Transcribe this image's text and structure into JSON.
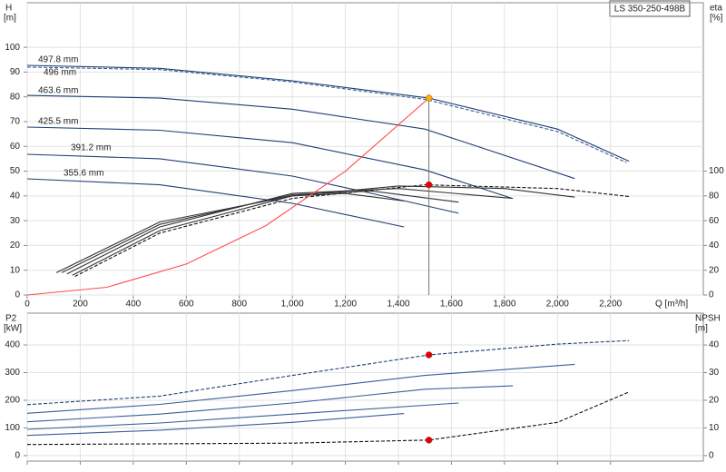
{
  "chart_data": [
    {
      "type": "line",
      "title": "LS 350-250-498B",
      "ylabel": [
        "H",
        "[m]"
      ],
      "y2label": [
        "eta",
        "[%]"
      ],
      "xlabel": "Q [m³/h]",
      "xlim": [
        0,
        2550
      ],
      "xticks": [
        0,
        200,
        400,
        600,
        800,
        {
          "value": 1000,
          "label": "1,000"
        },
        {
          "value": 1200,
          "label": "1,200"
        },
        {
          "value": 1400,
          "label": "1,400"
        },
        {
          "value": 1600,
          "label": "1,600"
        },
        {
          "value": 1800,
          "label": "1,800"
        },
        {
          "value": 2000,
          "label": "2,000"
        },
        {
          "value": 2200,
          "label": "2,200"
        }
      ],
      "show_xtick_labels": true,
      "ylim": [
        0,
        118
      ],
      "yticks": [
        0,
        10,
        20,
        30,
        40,
        50,
        60,
        70,
        80,
        90,
        100
      ],
      "y2lim": [
        0,
        236
      ],
      "y2ticks": [
        0,
        20,
        40,
        60,
        80,
        100
      ],
      "grid": true,
      "series": [
        {
          "name": "497.8 mm",
          "color": "#1f3f73",
          "dash": false,
          "x": [
            0,
            500,
            1000,
            1515,
            2000,
            2270
          ],
          "values": [
            92.7,
            91.5,
            86.5,
            79.5,
            67,
            54
          ]
        },
        {
          "name": "496 mm",
          "color": "#3a5f9a",
          "dash": true,
          "x": [
            0,
            500,
            1000,
            1500,
            2000,
            2260
          ],
          "values": [
            92,
            91,
            86,
            79,
            66,
            53.5
          ]
        },
        {
          "name": "463.6 mm",
          "color": "#1f3f73",
          "dash": false,
          "x": [
            0,
            500,
            1000,
            1500,
            2065
          ],
          "values": [
            80.6,
            79.5,
            75,
            67,
            47
          ]
        },
        {
          "name": "425.5 mm",
          "color": "#1f3f73",
          "dash": false,
          "x": [
            0,
            500,
            1000,
            1500,
            1830
          ],
          "values": [
            67.8,
            66.5,
            61.5,
            50.5,
            39
          ]
        },
        {
          "name": "391.2 mm",
          "color": "#1f3f73",
          "dash": false,
          "x": [
            0,
            500,
            1000,
            1300,
            1627
          ],
          "values": [
            56.8,
            55,
            48,
            41,
            33
          ]
        },
        {
          "name": "355.6 mm",
          "color": "#1f3f73",
          "dash": false,
          "x": [
            0,
            500,
            1000,
            1421
          ],
          "values": [
            46.9,
            44.5,
            37,
            27.5
          ]
        },
        {
          "color": "#111111",
          "dash": true,
          "axis": "y2",
          "x": [
            180,
            500,
            1000,
            1500,
            2000,
            2270
          ],
          "values": [
            15,
            50,
            78,
            89,
            86,
            79.5
          ]
        },
        {
          "color": "#333333",
          "dash": false,
          "axis": "y2",
          "x": [
            170,
            500,
            1000,
            1400,
            1800,
            2065
          ],
          "values": [
            16,
            52,
            80,
            88,
            86,
            79
          ]
        },
        {
          "color": "#333333",
          "dash": false,
          "axis": "y2",
          "x": [
            150,
            500,
            1000,
            1400,
            1832
          ],
          "values": [
            17,
            55,
            82,
            86,
            78
          ]
        },
        {
          "color": "#333333",
          "dash": false,
          "axis": "y2",
          "x": [
            130,
            500,
            1000,
            1300,
            1627
          ],
          "values": [
            18,
            57,
            81,
            84,
            75
          ]
        },
        {
          "color": "#333333",
          "dash": false,
          "axis": "y2",
          "x": [
            110,
            500,
            1000,
            1200,
            1421
          ],
          "values": [
            18,
            59,
            80,
            82,
            76
          ]
        },
        {
          "color": "#ff4d4d",
          "dash": false,
          "x": [
            0,
            300,
            600,
            900,
            1200,
            1515
          ],
          "values": [
            0,
            3.1,
            12.5,
            28,
            50,
            79.5
          ]
        }
      ],
      "markers": [
        {
          "x": 1515,
          "y": 79.5,
          "color": "#f5b400",
          "drop": true
        },
        {
          "x": 1515,
          "y": 89,
          "color": "#e00000",
          "axis": "y2",
          "drop": false
        }
      ]
    },
    {
      "type": "line",
      "ylabel": [
        "P2",
        "[kW]"
      ],
      "y2label": [
        "NPSH",
        "[m]"
      ],
      "xlim": [
        0,
        2550
      ],
      "xticks": [
        0,
        200,
        400,
        600,
        800,
        1000,
        1200,
        1400,
        1600,
        1800,
        2000,
        2200
      ],
      "show_xtick_labels": false,
      "ylim": [
        -20,
        515
      ],
      "yticks": [
        0,
        100,
        200,
        300,
        400
      ],
      "y2lim": [
        -2,
        51.5
      ],
      "y2ticks": [
        0,
        10,
        20,
        30,
        40
      ],
      "grid": true,
      "series": [
        {
          "color": "#1f3f73",
          "dash": true,
          "x": [
            0,
            500,
            1000,
            1515,
            2000,
            2270
          ],
          "values": [
            184,
            215,
            290,
            364,
            403,
            416
          ]
        },
        {
          "color": "#3a5f9a",
          "dash": false,
          "x": [
            0,
            500,
            1000,
            1500,
            2065
          ],
          "values": [
            153,
            185,
            235,
            290,
            330
          ]
        },
        {
          "color": "#3a5f9a",
          "dash": false,
          "x": [
            0,
            500,
            1000,
            1500,
            1832
          ],
          "values": [
            122,
            150,
            190,
            240,
            252
          ]
        },
        {
          "color": "#3a5f9a",
          "dash": false,
          "x": [
            0,
            500,
            1000,
            1627
          ],
          "values": [
            95,
            118,
            150,
            190
          ]
        },
        {
          "color": "#3a5f9a",
          "dash": false,
          "x": [
            0,
            500,
            1000,
            1421
          ],
          "values": [
            73,
            92,
            120,
            152
          ]
        },
        {
          "color": "#111111",
          "dash": true,
          "axis": "y2",
          "x": [
            0,
            1000,
            1515,
            2000,
            2270
          ],
          "values": [
            4,
            4.5,
            5.6,
            12,
            23
          ]
        }
      ],
      "markers": [
        {
          "x": 1515,
          "y": 364,
          "color": "#e00000",
          "drop": false
        },
        {
          "x": 1515,
          "y": 5.6,
          "color": "#e00000",
          "axis": "y2",
          "drop": false
        }
      ]
    }
  ]
}
